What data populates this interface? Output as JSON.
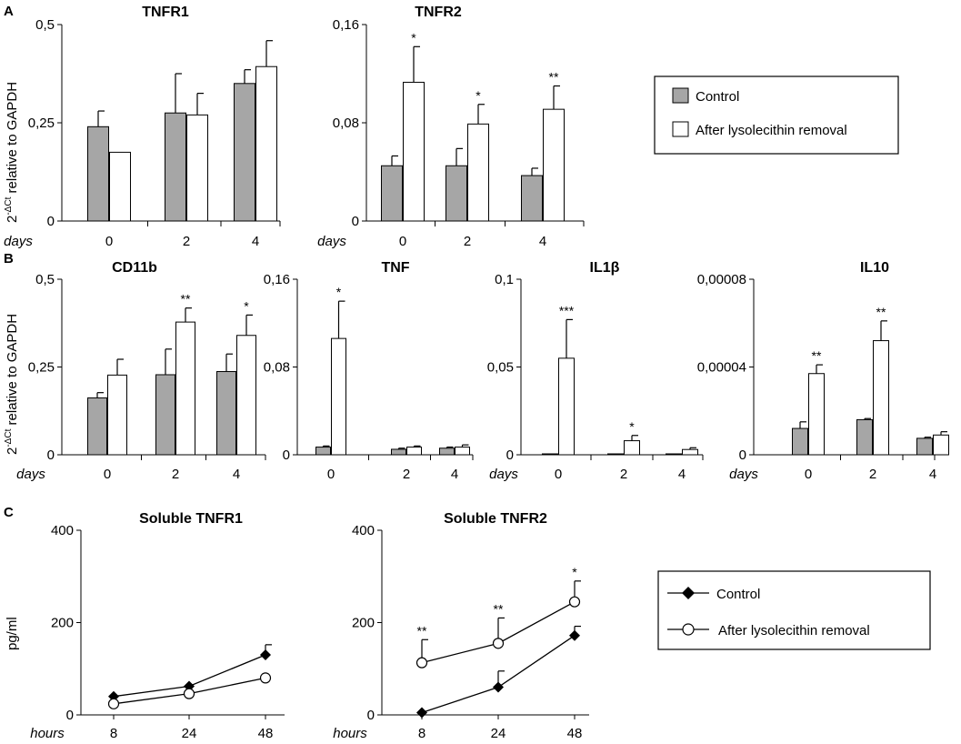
{
  "colors": {
    "control": "#a6a6a6",
    "lyso": "#ffffff",
    "stroke": "#000000"
  },
  "panels": {
    "a": "A",
    "b": "B",
    "c": "C"
  },
  "ylabels": {
    "rel_prefix": "2",
    "rel_sup": "-ΔCt",
    "rel_suffix": " relative to GAPDH",
    "pgml": "pg/ml"
  },
  "legend_bar": {
    "control": "Control",
    "lyso": "After lysolecithin removal"
  },
  "legend_line": {
    "control": "Control",
    "lyso": "After lysolecithin removal"
  },
  "chart_data": [
    {
      "id": "tnfr1",
      "type": "bar",
      "title": "TNFR1",
      "xlabel": "days",
      "ylabel": "2-ΔCt relative to GAPDH",
      "categories": [
        "0",
        "2",
        "4"
      ],
      "ylim": [
        0,
        0.5
      ],
      "yticks": [
        0,
        0.25,
        0.5
      ],
      "ytick_labels": [
        "0",
        "0,25",
        "0,5"
      ],
      "series": [
        {
          "name": "Control",
          "values": [
            0.24,
            0.275,
            0.35
          ],
          "errors": [
            0.04,
            0.1,
            0.035
          ],
          "sig": [
            "",
            "",
            ""
          ]
        },
        {
          "name": "After lysolecithin removal",
          "values": [
            0.175,
            0.27,
            0.393
          ],
          "errors": [
            0,
            0.055,
            0.066
          ],
          "sig": [
            "",
            "",
            ""
          ]
        }
      ]
    },
    {
      "id": "tnfr2",
      "type": "bar",
      "title": "TNFR2",
      "xlabel": "days",
      "categories": [
        "0",
        "2",
        "4"
      ],
      "ylim": [
        0,
        0.16
      ],
      "yticks": [
        0,
        0.08,
        0.16
      ],
      "ytick_labels": [
        "0",
        "0,08",
        "0,16"
      ],
      "series": [
        {
          "name": "Control",
          "values": [
            0.045,
            0.045,
            0.037
          ],
          "errors": [
            0.008,
            0.014,
            0.006
          ],
          "sig": [
            "",
            "",
            ""
          ]
        },
        {
          "name": "After lysolecithin removal",
          "values": [
            0.113,
            0.079,
            0.091
          ],
          "errors": [
            0.029,
            0.016,
            0.019
          ],
          "sig": [
            "*",
            "*",
            "**"
          ]
        }
      ]
    },
    {
      "id": "cd11b",
      "type": "bar",
      "title": "CD11b",
      "xlabel": "days",
      "ylabel": "2-ΔCt relative to GAPDH",
      "categories": [
        "0",
        "2",
        "4"
      ],
      "ylim": [
        0,
        0.5
      ],
      "yticks": [
        0,
        0.25,
        0.5
      ],
      "ytick_labels": [
        "0",
        "0,25",
        "0,5"
      ],
      "series": [
        {
          "name": "Control",
          "values": [
            0.162,
            0.228,
            0.237
          ],
          "errors": [
            0.015,
            0.073,
            0.05
          ],
          "sig": [
            "",
            "",
            ""
          ]
        },
        {
          "name": "After lysolecithin removal",
          "values": [
            0.227,
            0.378,
            0.34
          ],
          "errors": [
            0.045,
            0.04,
            0.058
          ],
          "sig": [
            "",
            "**",
            "*"
          ]
        }
      ]
    },
    {
      "id": "tnf",
      "type": "bar",
      "title": "TNF",
      "xlabel": "",
      "categories": [
        "0",
        "2",
        "4"
      ],
      "ylim": [
        0,
        0.16
      ],
      "yticks": [
        0,
        0.08,
        0.16
      ],
      "ytick_labels": [
        "0",
        "0,08",
        "0,16"
      ],
      "series": [
        {
          "name": "Control",
          "values": [
            0.007,
            0.005,
            0.006
          ],
          "errors": [
            0.001,
            0.001,
            0.001
          ],
          "sig": [
            "",
            "",
            ""
          ]
        },
        {
          "name": "After lysolecithin removal",
          "values": [
            0.106,
            0.007,
            0.007
          ],
          "errors": [
            0.034,
            0.001,
            0.002
          ],
          "sig": [
            "*",
            "",
            ""
          ]
        }
      ]
    },
    {
      "id": "il1b",
      "type": "bar",
      "title": "IL1β",
      "xlabel": "days",
      "categories": [
        "0",
        "2",
        "4"
      ],
      "ylim": [
        0,
        0.1
      ],
      "yticks": [
        0,
        0.05,
        0.1
      ],
      "ytick_labels": [
        "0",
        "0,05",
        "0,1"
      ],
      "series": [
        {
          "name": "Control",
          "values": [
            0.0005,
            0.0005,
            0.0003
          ],
          "errors": [
            0,
            0,
            0
          ],
          "sig": [
            "",
            "",
            ""
          ]
        },
        {
          "name": "After lysolecithin removal",
          "values": [
            0.055,
            0.008,
            0.003
          ],
          "errors": [
            0.022,
            0.003,
            0.001
          ],
          "sig": [
            "***",
            "*",
            ""
          ]
        }
      ]
    },
    {
      "id": "il10",
      "type": "bar",
      "title": "IL10",
      "xlabel": "days",
      "categories": [
        "0",
        "2",
        "4"
      ],
      "ylim": [
        0,
        8e-05
      ],
      "yticks": [
        0,
        4e-05,
        8e-05
      ],
      "ytick_labels": [
        "0",
        "0,00004",
        "0,00008"
      ],
      "series": [
        {
          "name": "Control",
          "values": [
            1.2e-05,
            1.6e-05,
            7.5e-06
          ],
          "errors": [
            3e-06,
            5e-07,
            5e-07
          ],
          "sig": [
            "",
            "",
            ""
          ]
        },
        {
          "name": "After lysolecithin removal",
          "values": [
            3.7e-05,
            5.2e-05,
            9e-06
          ],
          "errors": [
            4e-06,
            9e-06,
            1.5e-06
          ],
          "sig": [
            "**",
            "**",
            ""
          ]
        }
      ]
    },
    {
      "id": "stnfr1",
      "type": "line",
      "title": "Soluble TNFR1",
      "xlabel": "hours",
      "ylabel": "pg/ml",
      "x": [
        "8",
        "24",
        "48"
      ],
      "ylim": [
        0,
        400
      ],
      "yticks": [
        0,
        200,
        400
      ],
      "ytick_labels": [
        "0",
        "200",
        "400"
      ],
      "series": [
        {
          "name": "Control",
          "marker": "diamond",
          "values": [
            40,
            62,
            130
          ],
          "errors": [
            0,
            0,
            22
          ],
          "sig": [
            "",
            "",
            ""
          ]
        },
        {
          "name": "After lysolecithin removal",
          "marker": "circle",
          "values": [
            24,
            46,
            80
          ],
          "errors": [
            0,
            0,
            0
          ],
          "sig": [
            "",
            "",
            ""
          ]
        }
      ]
    },
    {
      "id": "stnfr2",
      "type": "line",
      "title": "Soluble TNFR2",
      "xlabel": "hours",
      "x": [
        "8",
        "24",
        "48"
      ],
      "ylim": [
        0,
        400
      ],
      "yticks": [
        0,
        200,
        400
      ],
      "ytick_labels": [
        "0",
        "200",
        "400"
      ],
      "series": [
        {
          "name": "Control",
          "marker": "diamond",
          "values": [
            5,
            60,
            172
          ],
          "errors": [
            0,
            35,
            20
          ],
          "sig": [
            "",
            "",
            ""
          ]
        },
        {
          "name": "After lysolecithin removal",
          "marker": "circle",
          "values": [
            113,
            155,
            245
          ],
          "errors": [
            50,
            55,
            45
          ],
          "sig": [
            "**",
            "**",
            "*"
          ]
        }
      ]
    }
  ]
}
